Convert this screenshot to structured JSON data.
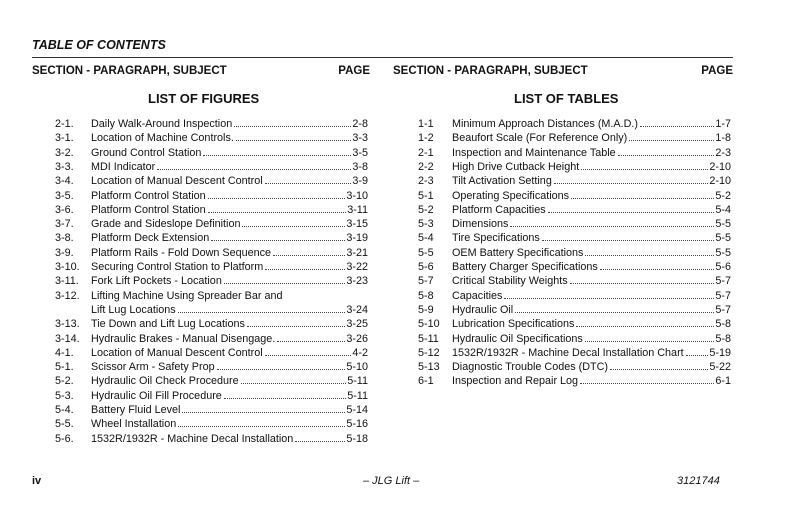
{
  "header": {
    "title": "TABLE OF CONTENTS"
  },
  "columns": [
    {
      "heading": "SECTION - PARAGRAPH, SUBJECT",
      "page_heading": "PAGE",
      "list_title": "LIST OF FIGURES",
      "entries": [
        {
          "number": "2-1.",
          "title": "Daily Walk-Around Inspection",
          "page": "2-8"
        },
        {
          "number": "3-1.",
          "title": "Location of Machine Controls.",
          "page": "3-3"
        },
        {
          "number": "3-2.",
          "title": "Ground Control Station",
          "page": "3-5"
        },
        {
          "number": "3-3.",
          "title": "MDI Indicator",
          "page": "3-8"
        },
        {
          "number": "3-4.",
          "title": "Location of Manual Descent Control",
          "page": "3-9"
        },
        {
          "number": "3-5.",
          "title": "Platform Control Station",
          "page": "3-10"
        },
        {
          "number": "3-6.",
          "title": "Platform Control Station",
          "page": "3-11"
        },
        {
          "number": "3-7.",
          "title": "Grade and Sideslope Definition",
          "page": "3-15"
        },
        {
          "number": "3-8.",
          "title": "Platform Deck Extension",
          "page": "3-19"
        },
        {
          "number": "3-9.",
          "title": "Platform Rails - Fold Down Sequence",
          "page": "3-21"
        },
        {
          "number": "3-10.",
          "title": "Securing Control Station to Platform",
          "page": "3-22"
        },
        {
          "number": "3-11.",
          "title": "Fork Lift Pockets - Location",
          "page": "3-23"
        },
        {
          "number": "3-12.",
          "title": "Lifting Machine Using Spreader Bar and",
          "title_continued": "Lift Lug Locations",
          "page": "3-24"
        },
        {
          "number": "3-13.",
          "title": "Tie Down and Lift Lug Locations",
          "page": "3-25"
        },
        {
          "number": "3-14.",
          "title": "Hydraulic Brakes - Manual Disengage.",
          "page": "3-26"
        },
        {
          "number": "4-1.",
          "title": "Location of Manual Descent Control",
          "page": "4-2"
        },
        {
          "number": "5-1.",
          "title": "Scissor Arm - Safety Prop",
          "page": "5-10"
        },
        {
          "number": "5-2.",
          "title": "Hydraulic Oil Check Procedure",
          "page": "5-11"
        },
        {
          "number": "5-3.",
          "title": "Hydraulic Oil Fill Procedure",
          "page": "5-11"
        },
        {
          "number": "5-4.",
          "title": "Battery Fluid Level",
          "page": "5-14"
        },
        {
          "number": "5-5.",
          "title": "Wheel Installation",
          "page": "5-16"
        },
        {
          "number": "5-6.",
          "title": "1532R/1932R - Machine Decal Installation",
          "page": "5-18"
        }
      ]
    },
    {
      "heading": "SECTION - PARAGRAPH, SUBJECT",
      "page_heading": "PAGE",
      "list_title": "LIST OF TABLES",
      "entries": [
        {
          "number": "1-1",
          "title": "Minimum Approach Distances (M.A.D.)",
          "page": "1-7"
        },
        {
          "number": "1-2",
          "title": "Beaufort Scale (For Reference Only)",
          "page": "1-8"
        },
        {
          "number": "2-1",
          "title": "Inspection and Maintenance Table",
          "page": "2-3"
        },
        {
          "number": "2-2",
          "title": "High Drive Cutback Height",
          "page": "2-10"
        },
        {
          "number": "2-3",
          "title": "Tilt Activation Setting",
          "page": "2-10"
        },
        {
          "number": "5-1",
          "title": "Operating Specifications",
          "page": "5-2"
        },
        {
          "number": "5-2",
          "title": "Platform Capacities",
          "page": "5-4"
        },
        {
          "number": "5-3",
          "title": "Dimensions",
          "page": "5-5"
        },
        {
          "number": "5-4",
          "title": "Tire Specifications",
          "page": "5-5"
        },
        {
          "number": "5-5",
          "title": "OEM Battery Specifications",
          "page": "5-5"
        },
        {
          "number": "5-6",
          "title": "Battery Charger Specifications",
          "page": "5-6"
        },
        {
          "number": "5-7",
          "title": "Critical Stability Weights",
          "page": "5-7"
        },
        {
          "number": "5-8",
          "title": "Capacities",
          "page": "5-7"
        },
        {
          "number": "5-9",
          "title": "Hydraulic Oil",
          "page": "5-7"
        },
        {
          "number": "5-10",
          "title": "Lubrication Specifications",
          "page": "5-8"
        },
        {
          "number": "5-11",
          "title": "Hydraulic Oil Specifications",
          "page": "5-8"
        },
        {
          "number": "5-12",
          "title": "1532R/1932R - Machine Decal Installation Chart",
          "page": "5-19"
        },
        {
          "number": "5-13",
          "title": "Diagnostic Trouble Codes (DTC)",
          "page": "5-22"
        },
        {
          "number": "6-1",
          "title": "Inspection and Repair Log",
          "page": "6-1"
        }
      ]
    }
  ],
  "footer": {
    "page_number": "iv",
    "center": "– JLG Lift –",
    "doc_number": "3121744"
  }
}
